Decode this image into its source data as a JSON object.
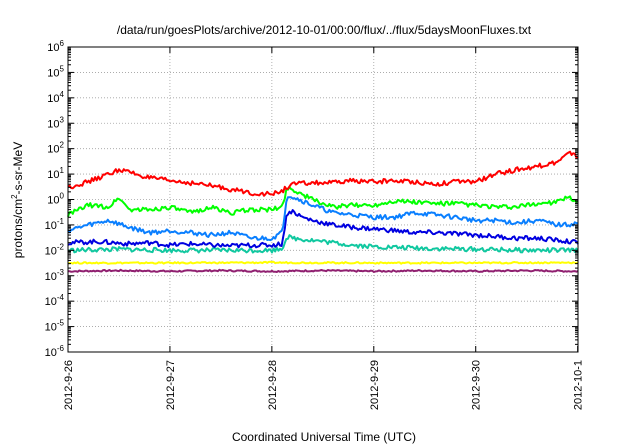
{
  "chart_data": {
    "type": "line",
    "title": "/data/run/goesPlots/archive/2012-10-01/00:00/flux/../flux/5daysMoonFluxes.txt",
    "xlabel": "Coordinated Universal Time (UTC)",
    "ylabel_main": "protons/cm",
    "ylabel_sup": "2",
    "ylabel_rest": "-s-sr-MeV",
    "yscale": "log",
    "ylim_exp": [
      -6,
      6
    ],
    "yticks": [
      {
        "base": "10",
        "exp": "-6",
        "e": -6
      },
      {
        "base": "10",
        "exp": "-5",
        "e": -5
      },
      {
        "base": "10",
        "exp": "-4",
        "e": -4
      },
      {
        "base": "10",
        "exp": "-3",
        "e": -3
      },
      {
        "base": "10",
        "exp": "-2",
        "e": -2
      },
      {
        "base": "10",
        "exp": "-1",
        "e": -1
      },
      {
        "base": "10",
        "exp": "0",
        "e": 0
      },
      {
        "base": "10",
        "exp": "1",
        "e": 1
      },
      {
        "base": "10",
        "exp": "2",
        "e": 2
      },
      {
        "base": "10",
        "exp": "3",
        "e": 3
      },
      {
        "base": "10",
        "exp": "4",
        "e": 4
      },
      {
        "base": "10",
        "exp": "5",
        "e": 5
      },
      {
        "base": "10",
        "exp": "6",
        "e": 6
      }
    ],
    "xlim_days": [
      "2012-09-26",
      "2012-10-01T00:05"
    ],
    "xticks": [
      "2012-9-26",
      "2012-9-27",
      "2012-9-28",
      "2012-9-29",
      "2012-9-30",
      "2012-10-1"
    ],
    "grid": true,
    "series": [
      {
        "color": "#ff0000",
        "t": [
          0,
          0.2,
          0.4,
          0.5,
          0.6,
          0.8,
          1.0,
          1.2,
          1.4,
          1.6,
          1.8,
          2.0,
          2.1,
          2.15,
          2.2,
          2.4,
          2.6,
          2.8,
          3.0,
          3.2,
          3.4,
          3.6,
          3.8,
          4.0,
          4.2,
          4.4,
          4.6,
          4.8,
          4.9,
          4.97,
          5.0
        ],
        "v": [
          3,
          5,
          10,
          15,
          12,
          7,
          5.5,
          4.5,
          3.5,
          2.5,
          1.8,
          1.6,
          2.2,
          3,
          4,
          4.5,
          4.5,
          5.5,
          5,
          5.5,
          5,
          4,
          5,
          5,
          10,
          15,
          20,
          30,
          60,
          70,
          40
        ]
      },
      {
        "color": "#00ff00",
        "t": [
          0,
          0.2,
          0.4,
          0.5,
          0.6,
          0.8,
          1.0,
          1.2,
          1.4,
          1.6,
          1.8,
          2.0,
          2.1,
          2.15,
          2.2,
          2.4,
          2.6,
          2.8,
          3.0,
          3.2,
          3.4,
          3.6,
          3.8,
          4.0,
          4.2,
          4.4,
          4.6,
          4.8,
          4.9,
          5.0
        ],
        "v": [
          0.25,
          0.6,
          0.5,
          1.2,
          0.4,
          0.4,
          0.5,
          0.3,
          0.5,
          0.3,
          0.4,
          0.4,
          0.5,
          3,
          2.5,
          1,
          0.5,
          0.6,
          0.6,
          0.9,
          0.8,
          0.7,
          0.7,
          0.6,
          0.5,
          0.5,
          0.7,
          0.8,
          1.2,
          0.8
        ]
      },
      {
        "color": "#0a7fff",
        "t": [
          0,
          0.2,
          0.4,
          0.6,
          0.8,
          1.0,
          1.2,
          1.4,
          1.6,
          1.8,
          2.0,
          2.1,
          2.15,
          2.2,
          2.4,
          2.6,
          2.8,
          3.0,
          3.2,
          3.4,
          3.6,
          3.8,
          4.0,
          4.2,
          4.4,
          4.6,
          4.8,
          4.9,
          5.0
        ],
        "v": [
          0.06,
          0.1,
          0.15,
          0.08,
          0.05,
          0.06,
          0.05,
          0.04,
          0.05,
          0.03,
          0.03,
          0.05,
          1.5,
          1.3,
          0.6,
          0.3,
          0.25,
          0.2,
          0.2,
          0.3,
          0.25,
          0.2,
          0.15,
          0.15,
          0.12,
          0.15,
          0.1,
          0.1,
          0.12
        ]
      },
      {
        "color": "#0000e0",
        "t": [
          0,
          0.3,
          0.6,
          0.8,
          1.0,
          1.2,
          1.4,
          1.6,
          1.8,
          2.0,
          2.1,
          2.15,
          2.2,
          2.3,
          2.4,
          2.6,
          2.8,
          3.0,
          3.2,
          3.4,
          3.6,
          3.8,
          4.0,
          4.2,
          4.4,
          4.6,
          4.8,
          5.0
        ],
        "v": [
          0.02,
          0.022,
          0.018,
          0.02,
          0.016,
          0.018,
          0.016,
          0.015,
          0.016,
          0.016,
          0.018,
          0.3,
          0.35,
          0.2,
          0.15,
          0.1,
          0.08,
          0.07,
          0.06,
          0.05,
          0.05,
          0.045,
          0.04,
          0.035,
          0.03,
          0.03,
          0.025,
          0.02
        ]
      },
      {
        "color": "#10c8a0",
        "t": [
          0,
          0.5,
          1.0,
          1.5,
          2.0,
          2.1,
          2.15,
          2.2,
          2.4,
          2.6,
          2.8,
          3.0,
          3.5,
          4.0,
          4.5,
          5.0
        ],
        "v": [
          0.01,
          0.011,
          0.01,
          0.01,
          0.01,
          0.012,
          0.035,
          0.03,
          0.025,
          0.02,
          0.016,
          0.014,
          0.012,
          0.011,
          0.01,
          0.01
        ]
      },
      {
        "color": "#ffff00",
        "t": [
          0,
          1.0,
          2.0,
          3.0,
          4.0,
          5.0
        ],
        "v": [
          0.0032,
          0.0032,
          0.0033,
          0.0032,
          0.0032,
          0.0033
        ]
      },
      {
        "color": "#902070",
        "t": [
          0,
          0.5,
          1.0,
          1.5,
          2.0,
          2.5,
          3.0,
          3.5,
          4.0,
          4.5,
          5.0
        ],
        "v": [
          0.0015,
          0.0016,
          0.0015,
          0.0016,
          0.0015,
          0.0016,
          0.0015,
          0.0016,
          0.0015,
          0.0016,
          0.0015
        ]
      }
    ]
  }
}
